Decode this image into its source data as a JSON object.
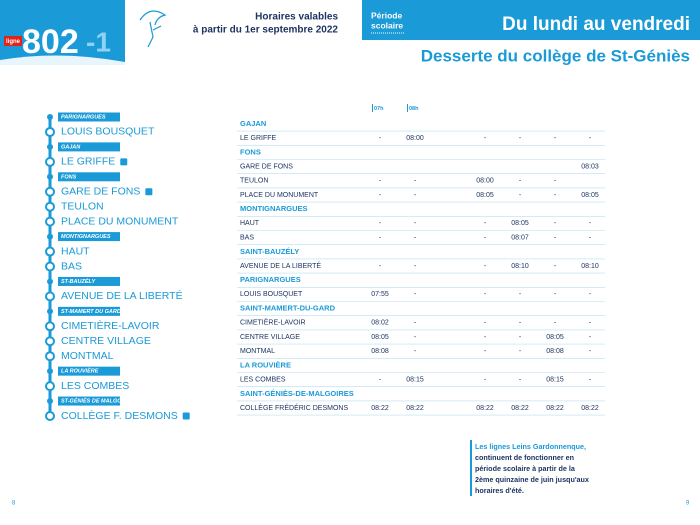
{
  "header": {
    "line_label": "ligne",
    "line_number": "802",
    "line_suffix": "-1",
    "validity": [
      "Horaires valables",
      "à partir du 1er septembre 2022"
    ],
    "period": [
      "Période",
      "scolaire"
    ],
    "days": "Du lundi au vendredi",
    "subtitle": "Desserte du collège de St-Géniès"
  },
  "route": [
    {
      "kind": "town",
      "label": "PARIGNARGUES"
    },
    {
      "kind": "stop",
      "label": "LOUIS BOUSQUET"
    },
    {
      "kind": "town",
      "label": "GAJAN"
    },
    {
      "kind": "stop",
      "label": "LE GRIFFE"
    },
    {
      "kind": "town",
      "label": "FONS"
    },
    {
      "kind": "stop",
      "label": "GARE DE FONS"
    },
    {
      "kind": "stop",
      "label": "TEULON"
    },
    {
      "kind": "stop",
      "label": "PLACE DU MONUMENT"
    },
    {
      "kind": "town",
      "label": "MONTIGNARGUES"
    },
    {
      "kind": "stop",
      "label": "HAUT"
    },
    {
      "kind": "stop",
      "label": "BAS"
    },
    {
      "kind": "town",
      "label": "ST-BAUZÉLY"
    },
    {
      "kind": "stop",
      "label": "AVENUE DE LA LIBERTÉ"
    },
    {
      "kind": "town",
      "label": "ST-MAMERT DU GARD"
    },
    {
      "kind": "stop",
      "label": "CIMETIÈRE-LAVOIR"
    },
    {
      "kind": "stop",
      "label": "CENTRE VILLAGE"
    },
    {
      "kind": "stop",
      "label": "MONTMAL"
    },
    {
      "kind": "town",
      "label": "LA ROUVIÈRE"
    },
    {
      "kind": "stop",
      "label": "LES COMBES"
    },
    {
      "kind": "town",
      "label": "ST-GÉNIÈS DE MALGOIRES"
    },
    {
      "kind": "stop",
      "label": "COLLÈGE F. DESMONS"
    }
  ],
  "table": {
    "column_headers": [
      "07h",
      "08h"
    ],
    "rows": [
      {
        "section": "GAJAN"
      },
      {
        "stop": "LE GRIFFE",
        "times": [
          "-",
          "08:00",
          "-",
          "-",
          "-",
          "-"
        ]
      },
      {
        "section": "FONS"
      },
      {
        "stop": "GARE DE FONS",
        "times": [
          null,
          null,
          null,
          null,
          null,
          "08:03"
        ]
      },
      {
        "stop": "TEULON",
        "times": [
          "-",
          "-",
          "08:00",
          "-",
          "-",
          null
        ]
      },
      {
        "stop": "PLACE DU MONUMENT",
        "times": [
          "-",
          "-",
          "08:05",
          "-",
          "-",
          "08:05"
        ]
      },
      {
        "section": "MONTIGNARGUES"
      },
      {
        "stop": "HAUT",
        "times": [
          "-",
          "-",
          "-",
          "08:05",
          "-",
          "-"
        ]
      },
      {
        "stop": "BAS",
        "times": [
          "-",
          "-",
          "-",
          "08:07",
          "-",
          "-"
        ]
      },
      {
        "section": "SAINT-BAUZÉLY"
      },
      {
        "stop": "AVENUE DE LA LIBERTÉ",
        "times": [
          "-",
          "-",
          "-",
          "08:10",
          "-",
          "08:10"
        ]
      },
      {
        "section": "PARIGNARGUES"
      },
      {
        "stop": "LOUIS BOUSQUET",
        "times": [
          "07:55",
          "-",
          "-",
          "-",
          "-",
          "-"
        ]
      },
      {
        "section": "SAINT-MAMERT-DU-GARD"
      },
      {
        "stop": "CIMETIÈRE-LAVOIR",
        "times": [
          "08:02",
          "-",
          "-",
          "-",
          "-",
          "-"
        ]
      },
      {
        "stop": "CENTRE VILLAGE",
        "times": [
          "08:05",
          "-",
          "-",
          "-",
          "08:05",
          "-"
        ]
      },
      {
        "stop": "MONTMAL",
        "times": [
          "08:08",
          "-",
          "-",
          "-",
          "08:08",
          "-"
        ]
      },
      {
        "section": "LA ROUVIÈRE"
      },
      {
        "stop": "LES COMBES",
        "times": [
          "-",
          "08:15",
          "-",
          "-",
          "08:15",
          "-"
        ]
      },
      {
        "section": "SAINT-GÉNIÈS-DE-MALGOIRES"
      },
      {
        "stop": "COLLÈGE FRÉDÉRIC DESMONS",
        "times": [
          "08:22",
          "08:22",
          "08:22",
          "08:22",
          "08:22",
          "08:22"
        ]
      }
    ]
  },
  "note": [
    "Les lignes Leins Gardonnenque,",
    "continuent de fonctionner en",
    "période scolaire à partir de la",
    "2ème quinzaine de juin jusqu'aux",
    "horaires d'été."
  ],
  "page_numbers": [
    "8",
    "9"
  ]
}
